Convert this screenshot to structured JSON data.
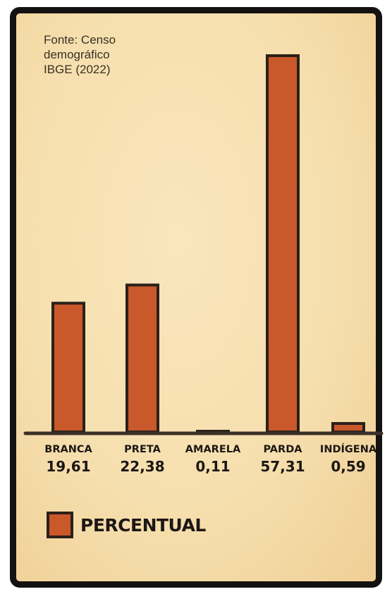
{
  "source": {
    "lines": [
      "Fonte: Censo",
      "demográfico",
      "IBGE (2022)"
    ]
  },
  "legend": {
    "label": "PERCENTUAL",
    "color": "#c9582a"
  },
  "colors": {
    "bar_fill": "#c9582a",
    "bar_outline": "#2b2119",
    "text": "#1c1714",
    "background": "#f6dfae",
    "frame": "#141210"
  },
  "chart_data": {
    "type": "bar",
    "categories": [
      "BRANCA",
      "PRETA",
      "AMARELA",
      "PARDA",
      "INDÍGENA"
    ],
    "values": [
      19.61,
      22.38,
      0.11,
      57.31,
      0.59
    ],
    "value_labels": [
      "19,61",
      "22,38",
      "0,11",
      "57,31",
      "0,59"
    ],
    "series": [
      {
        "name": "PERCENTUAL",
        "values": [
          19.61,
          22.38,
          0.11,
          57.31,
          0.59
        ]
      }
    ],
    "title": "",
    "xlabel": "",
    "ylabel": "",
    "ylim": [
      0,
      57.31
    ],
    "grid": false,
    "legend_position": "bottom-left"
  }
}
